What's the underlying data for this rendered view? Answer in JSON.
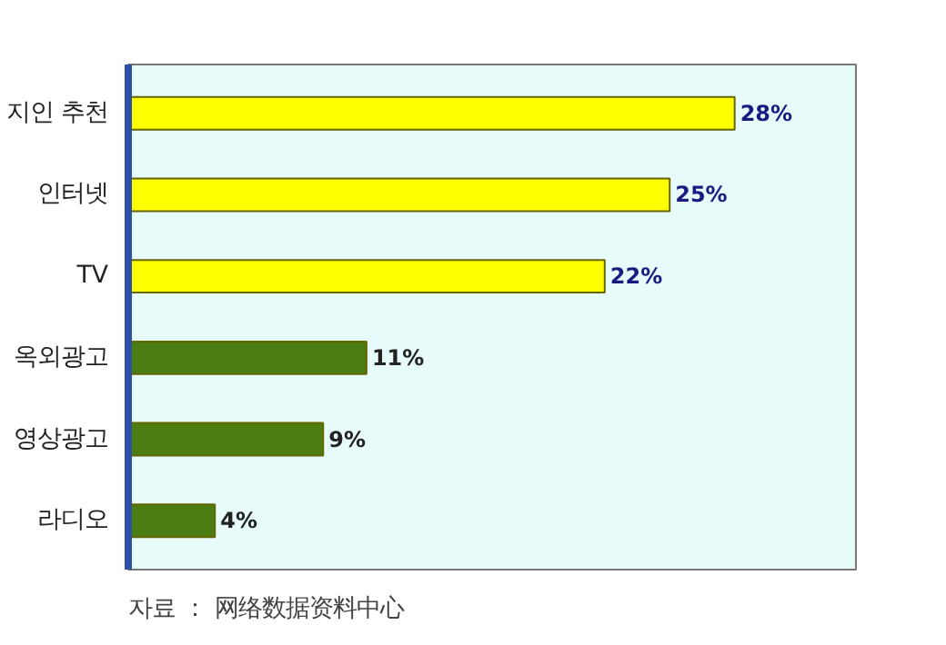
{
  "chart_data": {
    "type": "bar",
    "orientation": "horizontal",
    "categories": [
      "지인 추천",
      "인터넷",
      "TV",
      "옥외광고",
      "영상광고",
      "라디오"
    ],
    "values": [
      28,
      25,
      22,
      11,
      9,
      4
    ],
    "colors": [
      "#ffff00",
      "#ffff00",
      "#ffff00",
      "#4b7d12",
      "#4b7d12",
      "#4b7d12"
    ],
    "value_labels": [
      "28%",
      "25%",
      "22%",
      "11%",
      "9%",
      "4%"
    ],
    "tick_labels": "y",
    "grid": false,
    "annotations": [
      "자료 ： 网络数据资料中心"
    ]
  }
}
